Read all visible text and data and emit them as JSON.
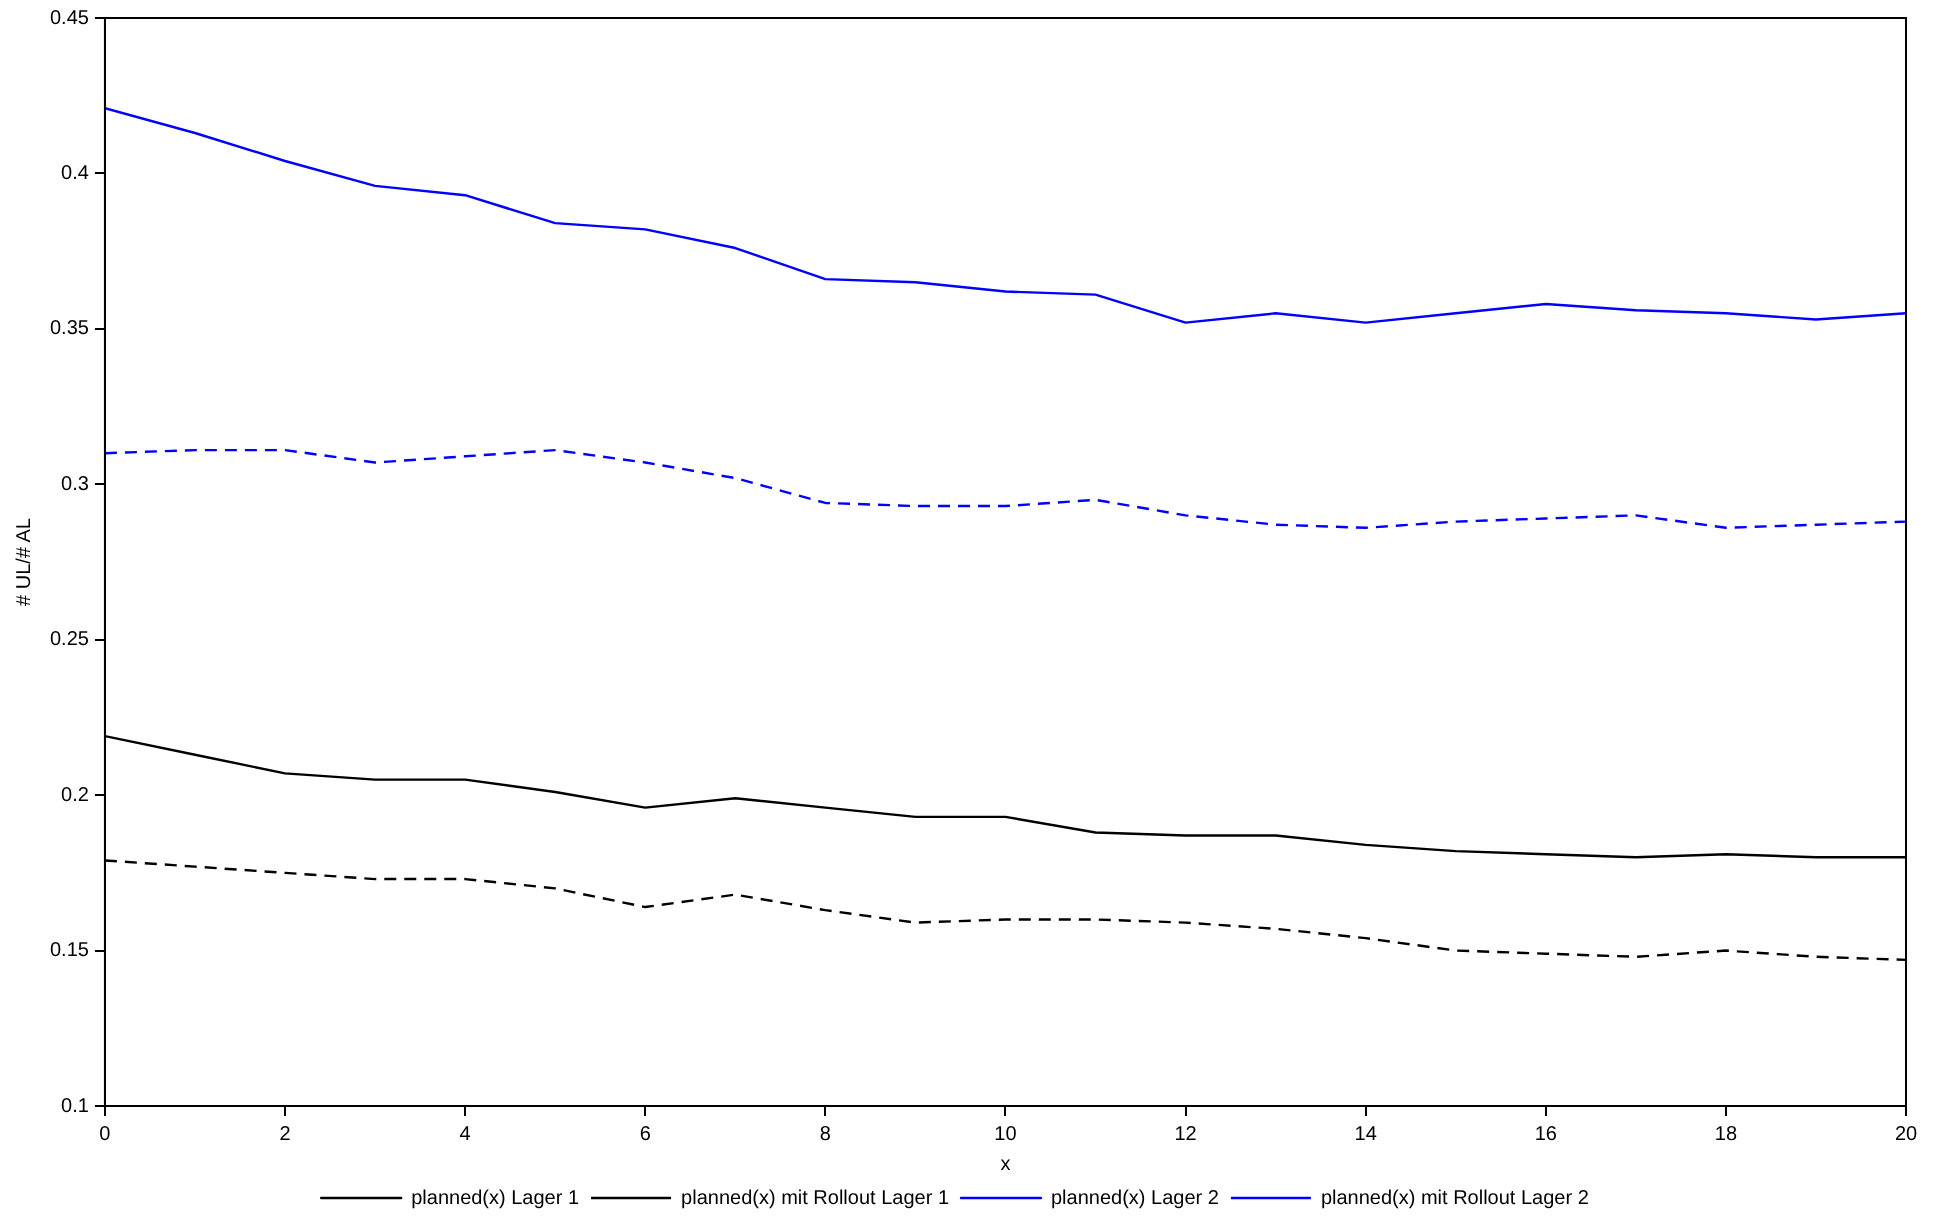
{
  "chart_data": {
    "type": "line",
    "xlabel": "x",
    "ylabel": "# UL/# AL",
    "x": [
      0,
      1,
      2,
      3,
      4,
      5,
      6,
      7,
      8,
      9,
      10,
      11,
      12,
      13,
      14,
      15,
      16,
      17,
      18,
      19,
      20
    ],
    "xlim": [
      0,
      20
    ],
    "xticks": [
      0,
      2,
      4,
      6,
      8,
      10,
      12,
      14,
      16,
      18,
      20
    ],
    "ylim": [
      0.1,
      0.45
    ],
    "yticks": [
      0.1,
      0.15,
      0.2,
      0.25,
      0.3,
      0.35,
      0.4,
      0.45
    ],
    "grid": false,
    "legend": "bottom",
    "marker": "none",
    "series": [
      {
        "name": "planned(x) Lager 1",
        "color": "#000000",
        "line_style": "solid",
        "values": [
          0.219,
          0.213,
          0.207,
          0.205,
          0.205,
          0.201,
          0.196,
          0.199,
          0.196,
          0.193,
          0.193,
          0.188,
          0.187,
          0.187,
          0.184,
          0.182,
          0.181,
          0.18,
          0.181,
          0.18,
          0.18
        ]
      },
      {
        "name": "planned(x) mit Rollout Lager 1",
        "color": "#000000",
        "line_style": "dashed",
        "values": [
          0.179,
          0.177,
          0.175,
          0.173,
          0.173,
          0.17,
          0.164,
          0.168,
          0.163,
          0.159,
          0.16,
          0.16,
          0.159,
          0.157,
          0.154,
          0.15,
          0.149,
          0.148,
          0.15,
          0.148,
          0.147
        ]
      },
      {
        "name": "planned(x) Lager 2",
        "color": "#0000ff",
        "line_style": "solid",
        "values": [
          0.421,
          0.413,
          0.404,
          0.396,
          0.393,
          0.384,
          0.382,
          0.376,
          0.366,
          0.365,
          0.362,
          0.361,
          0.352,
          0.355,
          0.352,
          0.355,
          0.358,
          0.356,
          0.355,
          0.353,
          0.355
        ]
      },
      {
        "name": "planned(x) mit Rollout Lager 2",
        "color": "#0000ff",
        "line_style": "dashed",
        "values": [
          0.31,
          0.311,
          0.311,
          0.307,
          0.309,
          0.311,
          0.307,
          0.302,
          0.294,
          0.293,
          0.293,
          0.295,
          0.29,
          0.287,
          0.286,
          0.288,
          0.289,
          0.29,
          0.286,
          0.287,
          0.288
        ]
      }
    ]
  }
}
